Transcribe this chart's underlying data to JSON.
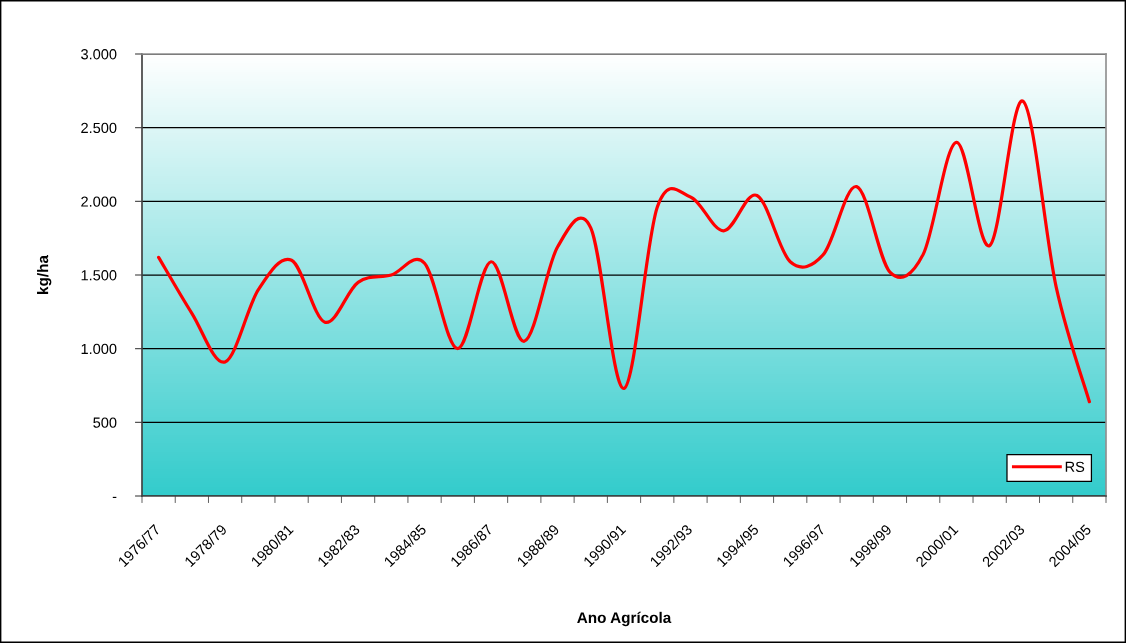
{
  "chart_data": {
    "type": "line",
    "xlabel": "Ano Agrícola",
    "ylabel": "kg/ha",
    "categories": [
      "1976/77",
      null,
      "1978/79",
      null,
      "1980/81",
      null,
      "1982/83",
      null,
      "1984/85",
      null,
      "1986/87",
      null,
      "1988/89",
      null,
      "1990/91",
      null,
      "1992/93",
      null,
      "1994/95",
      null,
      "1996/97",
      null,
      "1998/99",
      null,
      "2000/01",
      null,
      "2002/03",
      null,
      "2004/05"
    ],
    "series": [
      {
        "name": "RS",
        "color": "#ff0000",
        "values": [
          1620,
          1240,
          910,
          1400,
          1600,
          1180,
          1450,
          1500,
          1580,
          1000,
          1590,
          1050,
          1690,
          1820,
          730,
          1960,
          2030,
          1800,
          2040,
          1590,
          1640,
          2100,
          1520,
          1640,
          2400,
          1700,
          2680,
          1420,
          640
        ]
      }
    ],
    "ylim": [
      0,
      3000
    ],
    "yticks": [
      {
        "value": 0,
        "label": "-"
      },
      500,
      {
        "value": 1000,
        "label": "1.000"
      },
      {
        "value": 1500,
        "label": "1.500"
      },
      {
        "value": 2000,
        "label": "2.000"
      },
      {
        "value": 2500,
        "label": "2.500"
      },
      {
        "value": 3000,
        "label": "3.000"
      }
    ],
    "grid": "y",
    "legend": "bottom right"
  }
}
